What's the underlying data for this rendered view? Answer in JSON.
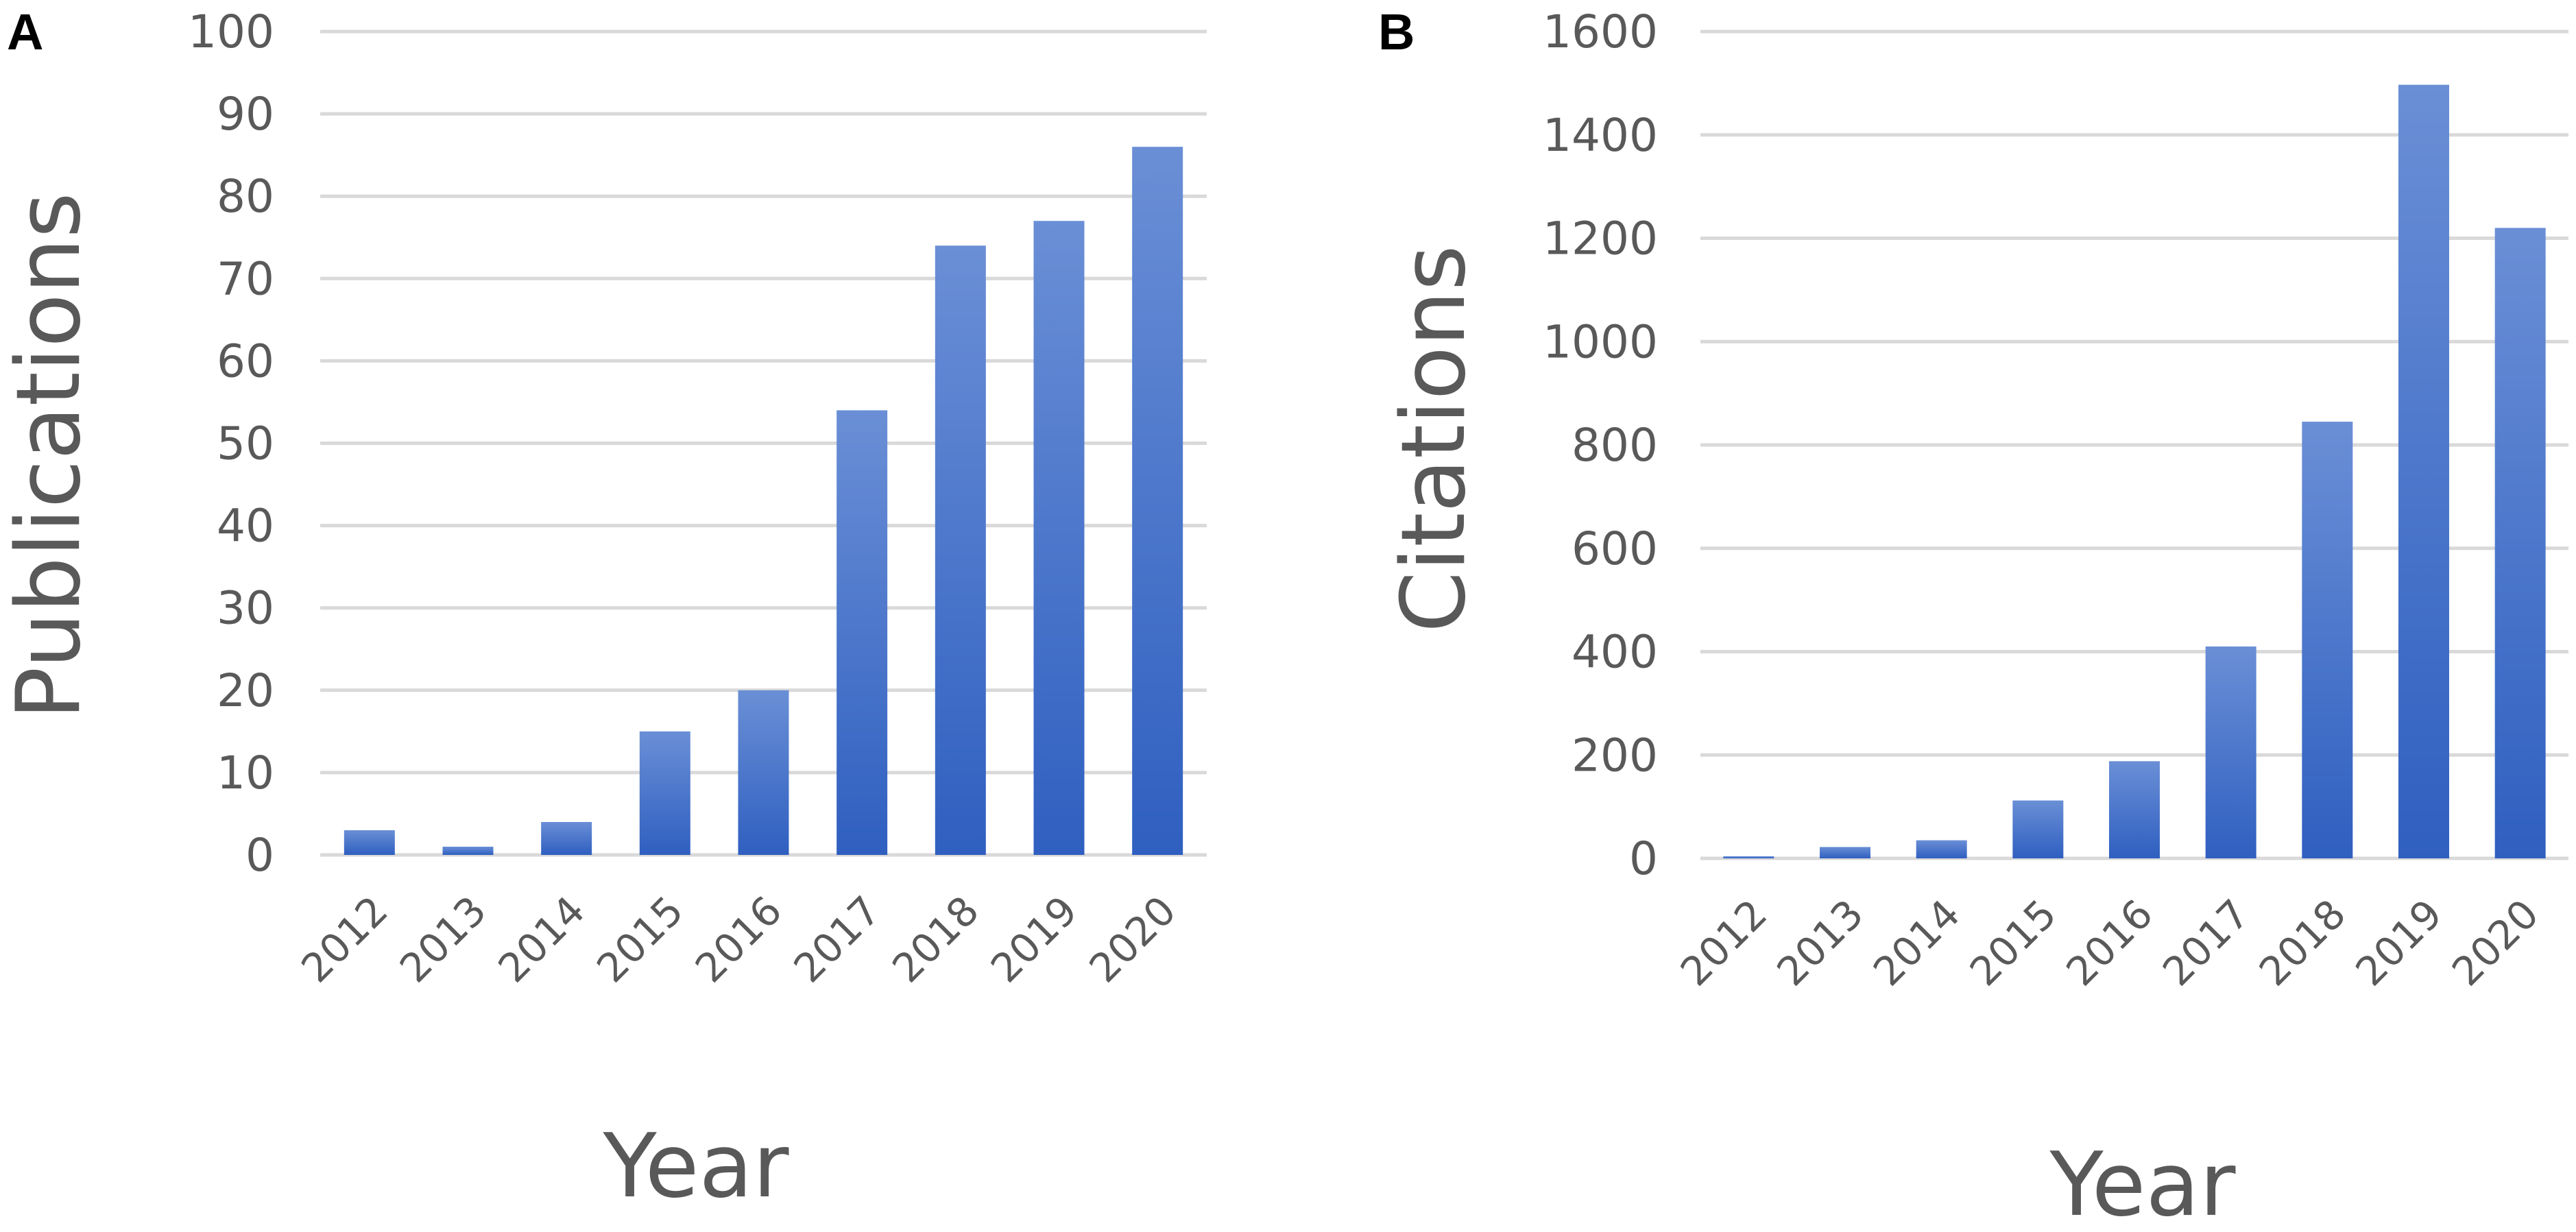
{
  "colors": {
    "bar_top": "#6a8fd6",
    "bar_bottom": "#2f5fc0",
    "grid": "#d9d9d9",
    "text": "#595959"
  },
  "chart_data": [
    {
      "type": "bar",
      "panel_label": "A",
      "categories": [
        "2012",
        "2013",
        "2014",
        "2015",
        "2016",
        "2017",
        "2018",
        "2019",
        "2020"
      ],
      "values": [
        3,
        1,
        4,
        15,
        20,
        54,
        74,
        77,
        86
      ],
      "xlabel": "Year",
      "ylabel": "Publications",
      "ylim": [
        0,
        100
      ],
      "yticks": [
        "0",
        "10",
        "20",
        "30",
        "40",
        "50",
        "60",
        "70",
        "80",
        "90",
        "100"
      ],
      "grid": true,
      "legend": "none"
    },
    {
      "type": "bar",
      "panel_label": "B",
      "categories": [
        "2012",
        "2013",
        "2014",
        "2015",
        "2016",
        "2017",
        "2018",
        "2019",
        "2020"
      ],
      "values": [
        2,
        22,
        35,
        112,
        188,
        410,
        845,
        1497,
        1220
      ],
      "xlabel": "Year",
      "ylabel": "Citations",
      "ylim": [
        0,
        1600
      ],
      "yticks": [
        "0",
        "200",
        "400",
        "600",
        "800",
        "1000",
        "1200",
        "1400",
        "1600"
      ],
      "grid": true,
      "legend": "none"
    }
  ]
}
